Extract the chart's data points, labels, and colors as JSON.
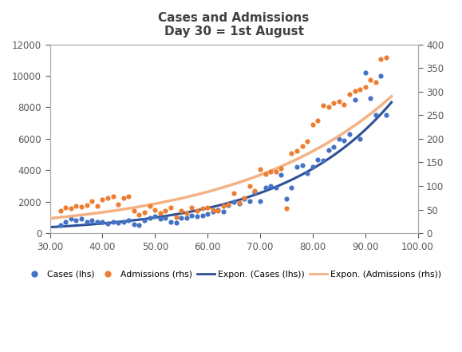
{
  "title_line1": "Cases and Admissions",
  "title_line2": "Day 30 = 1st August",
  "xlim": [
    30,
    100
  ],
  "ylim_left": [
    0,
    12000
  ],
  "ylim_right": [
    0,
    400
  ],
  "xticks": [
    30,
    40,
    50,
    60,
    70,
    80,
    90,
    100
  ],
  "yticks_left": [
    0,
    2000,
    4000,
    6000,
    8000,
    10000,
    12000
  ],
  "yticks_right": [
    0,
    50,
    100,
    150,
    200,
    250,
    300,
    350,
    400
  ],
  "cases_x": [
    32,
    33,
    34,
    35,
    36,
    37,
    38,
    39,
    40,
    41,
    42,
    43,
    44,
    45,
    46,
    47,
    48,
    49,
    50,
    51,
    52,
    53,
    54,
    55,
    56,
    57,
    58,
    59,
    60,
    61,
    62,
    63,
    64,
    65,
    66,
    67,
    68,
    69,
    70,
    71,
    72,
    73,
    74,
    75,
    76,
    77,
    78,
    79,
    80,
    81,
    82,
    83,
    84,
    85,
    86,
    87,
    88,
    89,
    90,
    91,
    92,
    93,
    94
  ],
  "cases_y": [
    500,
    700,
    900,
    800,
    900,
    700,
    800,
    700,
    700,
    600,
    700,
    650,
    700,
    800,
    550,
    500,
    800,
    1000,
    1100,
    900,
    1000,
    700,
    650,
    1000,
    950,
    1150,
    1100,
    1150,
    1250,
    1400,
    1500,
    1400,
    1800,
    2000,
    1900,
    2200,
    2050,
    2600,
    2050,
    2900,
    3000,
    2900,
    3700,
    2200,
    2900,
    4200,
    4300,
    3800,
    4200,
    4700,
    4600,
    5300,
    5500,
    6000,
    5900,
    6300,
    8500,
    6000,
    10200,
    8600,
    7500,
    10000,
    7500
  ],
  "admissions_x": [
    32,
    33,
    34,
    35,
    36,
    37,
    38,
    39,
    40,
    41,
    42,
    43,
    44,
    45,
    46,
    47,
    48,
    49,
    50,
    51,
    52,
    53,
    54,
    55,
    56,
    57,
    58,
    59,
    60,
    61,
    62,
    63,
    64,
    65,
    66,
    67,
    68,
    69,
    70,
    71,
    72,
    73,
    74,
    75,
    76,
    77,
    78,
    79,
    80,
    81,
    82,
    83,
    84,
    85,
    86,
    87,
    88,
    89,
    90,
    91,
    92,
    93,
    94
  ],
  "admissions_y": [
    48,
    55,
    52,
    58,
    56,
    60,
    68,
    58,
    72,
    75,
    78,
    62,
    75,
    78,
    48,
    40,
    45,
    58,
    50,
    42,
    48,
    55,
    35,
    48,
    42,
    55,
    48,
    52,
    55,
    50,
    48,
    58,
    62,
    85,
    65,
    75,
    100,
    90,
    135,
    125,
    130,
    130,
    138,
    52,
    170,
    175,
    185,
    195,
    230,
    238,
    270,
    268,
    275,
    280,
    272,
    295,
    302,
    305,
    310,
    325,
    320,
    368,
    372
  ],
  "cases_color": "#4472c4",
  "admissions_color": "#ed7d31",
  "cases_fit_color": "#2e5096",
  "admissions_fit_color": "#f4b183",
  "background_color": "#ffffff",
  "title_color": "#404040",
  "tick_color": "#595959",
  "legend_labels": [
    "Cases (lhs)",
    "Admissions (rhs)",
    "Expon. (Cases (lhs))",
    "Expon. (Admissions (rhs))"
  ]
}
